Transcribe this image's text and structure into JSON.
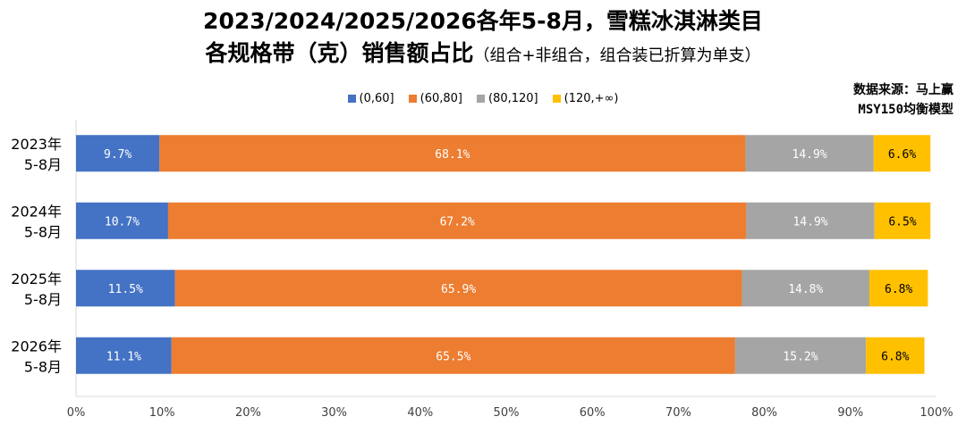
{
  "title_line1": "2023/2024/2025/2026各年5-8月，雪糕冰淇淋类目",
  "title_line2_main": "各规格带（克）销售额占比",
  "title_line2_note": "（组合+非组合，组合装已折算为单支）",
  "source_line1": "数据来源：马上赢",
  "source_line2": "MSY150均衡模型",
  "chart_data": {
    "type": "bar",
    "orientation": "horizontal",
    "stacked": "percent",
    "categories": [
      [
        "2023年",
        "5-8月"
      ],
      [
        "2024年",
        "5-8月"
      ],
      [
        "2025年",
        "5-8月"
      ],
      [
        "2026年",
        "5-8月"
      ]
    ],
    "series": [
      {
        "name": "(0,60]",
        "color": "#4472C4",
        "values": [
          9.7,
          10.7,
          11.5,
          11.1
        ],
        "labels": [
          "9.7%",
          "10.7%",
          "11.5%",
          "11.1%"
        ]
      },
      {
        "name": "(60,80]",
        "color": "#ED7D31",
        "values": [
          68.1,
          67.2,
          65.9,
          65.5
        ],
        "labels": [
          "68.1%",
          "67.2%",
          "65.9%",
          "65.5%"
        ]
      },
      {
        "name": "(80,120]",
        "color": "#A5A5A5",
        "values": [
          14.9,
          14.9,
          14.8,
          15.2
        ],
        "labels": [
          "14.9%",
          "14.9%",
          "14.8%",
          "15.2%"
        ]
      },
      {
        "name": "(120,+∞)",
        "color": "#FFC000",
        "values": [
          6.6,
          6.5,
          6.8,
          6.8
        ],
        "labels": [
          "6.6%",
          "6.5%",
          "6.8%",
          "6.8%"
        ]
      }
    ],
    "xlim": [
      0,
      100
    ],
    "x_ticks": [
      "0%",
      "10%",
      "20%",
      "30%",
      "40%",
      "50%",
      "60%",
      "70%",
      "80%",
      "90%",
      "100%"
    ],
    "grid": false,
    "legend_position": "top"
  }
}
